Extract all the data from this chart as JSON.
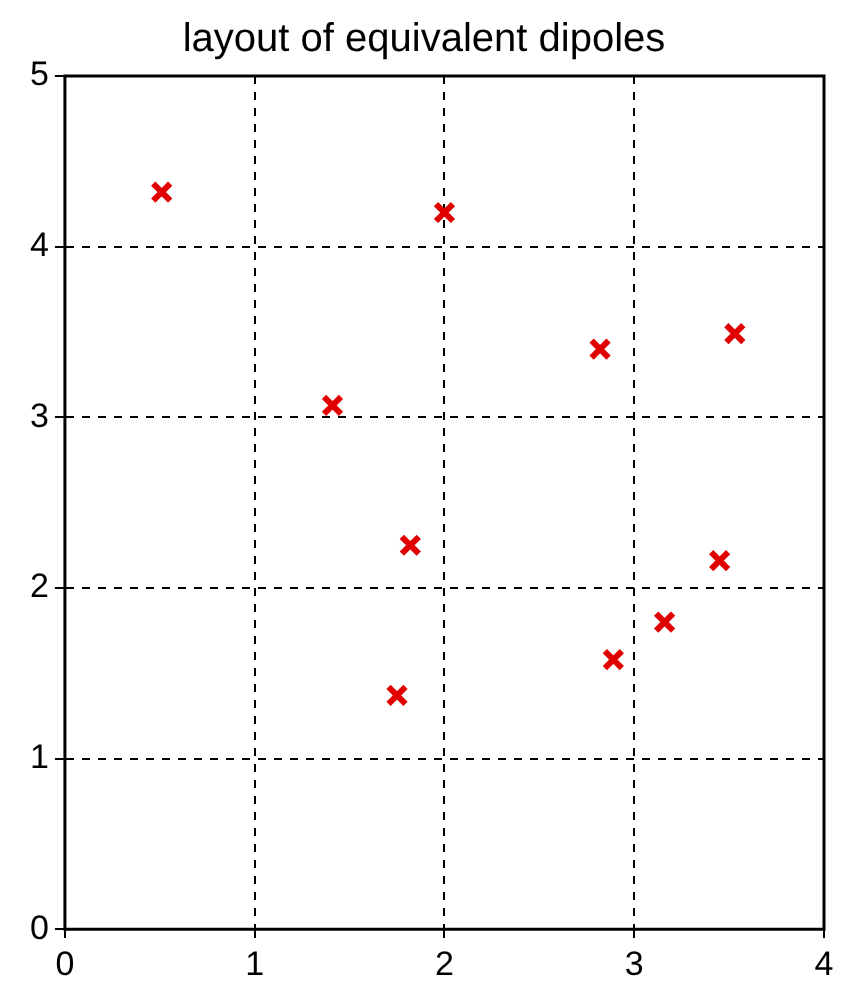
{
  "chart_data": {
    "type": "scatter",
    "title": "layout of equivalent dipoles",
    "x": [
      0.51,
      2.0,
      1.41,
      2.82,
      3.53,
      1.82,
      3.45,
      3.16,
      2.89,
      1.75
    ],
    "series": [
      {
        "color": "#e00000",
        "values": [
          4.32,
          4.2,
          3.07,
          3.4,
          3.49,
          2.25,
          2.16,
          1.8,
          1.58,
          1.37
        ]
      }
    ],
    "xlim": [
      0,
      4
    ],
    "xticks": [
      0,
      1,
      2,
      3,
      4
    ],
    "ylim": [
      0,
      5
    ],
    "yticks": [
      0,
      1,
      2,
      3,
      4,
      5
    ],
    "grid": true,
    "marker": "cross",
    "legend": false
  }
}
